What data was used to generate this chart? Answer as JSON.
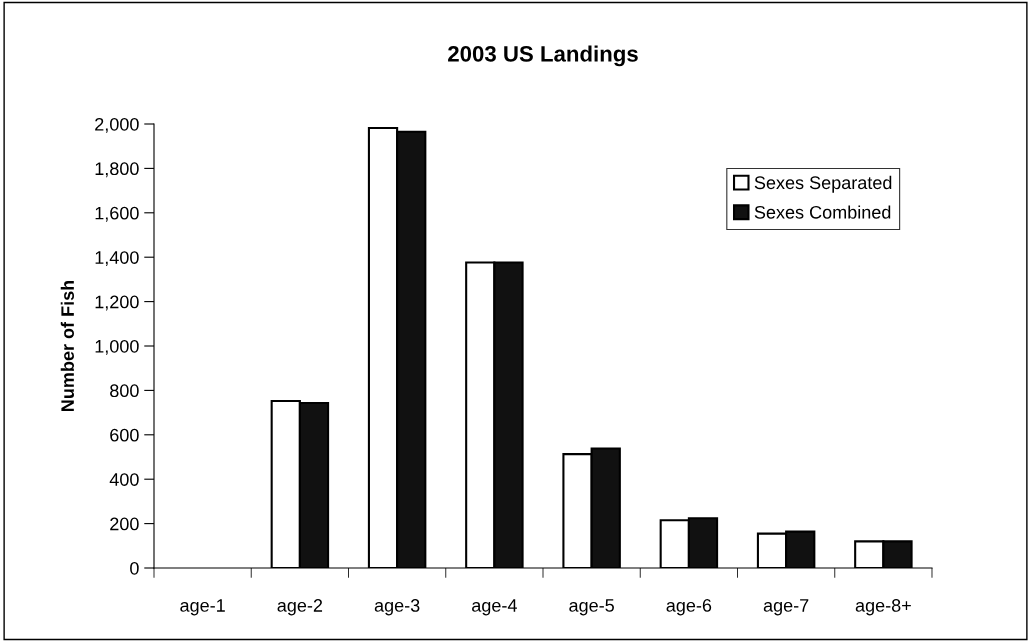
{
  "chart_data": {
    "type": "bar",
    "title": "2003 US Landings",
    "ylabel": "Number of Fish",
    "categories": [
      "age-1",
      "age-2",
      "age-3",
      "age-4",
      "age-5",
      "age-6",
      "age-7",
      "age-8+"
    ],
    "series": [
      {
        "name": "Sexes Separated",
        "color": "#ffffff",
        "values": [
          0,
          752,
          1982,
          1376,
          513,
          215,
          155,
          120
        ]
      },
      {
        "name": "Sexes Combined",
        "color": "#111111",
        "values": [
          0,
          743,
          1965,
          1376,
          538,
          224,
          164,
          120
        ]
      }
    ],
    "ylim": [
      0,
      2000
    ],
    "yticks": [
      {
        "value": 0,
        "label": "0"
      },
      {
        "value": 200,
        "label": "200"
      },
      {
        "value": 400,
        "label": "400"
      },
      {
        "value": 600,
        "label": "600"
      },
      {
        "value": 800,
        "label": "800"
      },
      {
        "value": 1000,
        "label": "1,000"
      },
      {
        "value": 1200,
        "label": "1,200"
      },
      {
        "value": 1400,
        "label": "1,400"
      },
      {
        "value": 1600,
        "label": "1,600"
      },
      {
        "value": 1800,
        "label": "1,800"
      },
      {
        "value": 2000,
        "label": "2,000"
      }
    ],
    "grid": false,
    "legend": "top right"
  }
}
